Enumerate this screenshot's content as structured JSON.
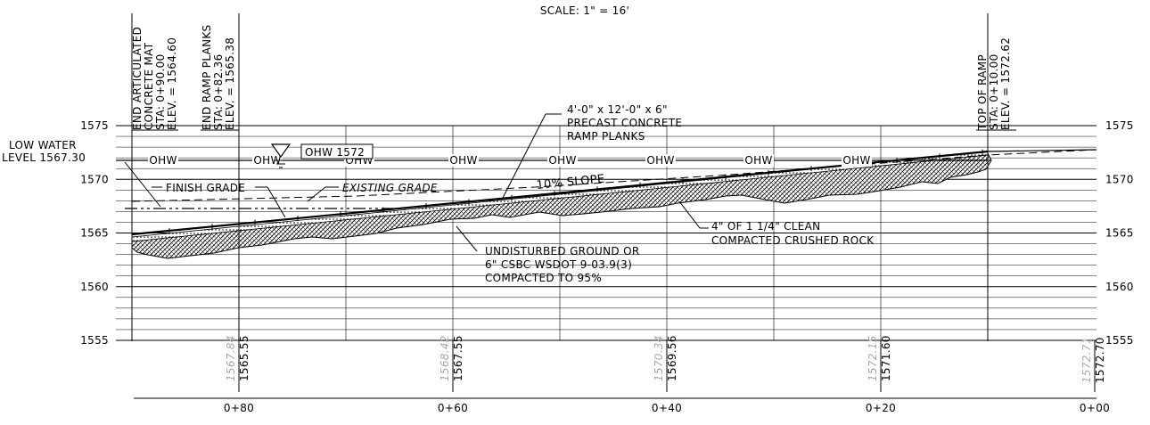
{
  "scale_note": "SCALE: 1\" = 16'",
  "elevation_axis": {
    "left_labels": [
      "1575",
      "1570",
      "1565",
      "1560",
      "1555"
    ],
    "right_labels": [
      "1575",
      "1570",
      "1565",
      "1560",
      "1555"
    ]
  },
  "stations": [
    "0+80",
    "0+60",
    "0+40",
    "0+20",
    "0+00"
  ],
  "station_elevations": [
    {
      "existing": "1567.84",
      "proposed": "1565.55"
    },
    {
      "existing": "1568.42",
      "proposed": "1567.55"
    },
    {
      "existing": "1570.34",
      "proposed": "1569.56"
    },
    {
      "existing": "1572.15",
      "proposed": "1571.60"
    },
    {
      "existing": "1572.71",
      "proposed": "1572.70"
    }
  ],
  "callouts": {
    "end_articulated": [
      "END ARTICULATED",
      "CONCRETE MAT",
      "STA: 0+90.00",
      "ELEV. = 1564.60"
    ],
    "end_ramp_planks": [
      "END RAMP PLANKS",
      "STA: 0+82.36",
      "ELEV. = 1565.38"
    ],
    "top_of_ramp": [
      "TOP OF RAMP",
      "STA: 0+10.00",
      "ELEV. = 1572.62"
    ],
    "low_water": [
      "LOW WATER",
      "LEVEL 1567.30"
    ],
    "ohw_tag": "OHW 1572",
    "ohw_line_label": "OHW",
    "planks": [
      "4'-0\" x 12'-0\" x 6\"",
      "PRECAST CONCRETE",
      "RAMP PLANKS"
    ],
    "slope": "10% SLOPE",
    "finish_grade": "FINISH GRADE",
    "existing_grade": "EXISTING GRADE",
    "crushed_rock": [
      "4\" OF 1 1/4\" CLEAN",
      "COMPACTED CRUSHED ROCK"
    ],
    "undisturbed": [
      "UNDISTURBED GROUND OR",
      "6\" CSBC WSDOT 9-03.9(3)",
      "COMPACTED TO 95%"
    ]
  }
}
